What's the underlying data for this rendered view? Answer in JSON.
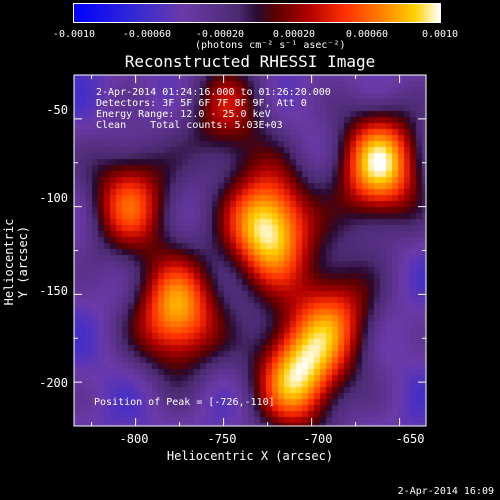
{
  "colorbar": {
    "ticks": [
      "-0.0010",
      "-0.00060",
      "-0.00020",
      "0.00020",
      "0.00060",
      "0.0010"
    ],
    "unit": "(photons cm⁻² s⁻¹ asec⁻²)"
  },
  "chart_data": {
    "type": "heatmap",
    "title": "Reconstructed RHESSI Image",
    "xlabel": "Heliocentric X (arcsec)",
    "ylabel": "Heliocentric Y (arcsec)",
    "xlim": [
      -835,
      -635
    ],
    "ylim": [
      -225,
      -25
    ],
    "xticks": [
      "-800",
      "-750",
      "-700",
      "-650"
    ],
    "yticks": [
      "-50",
      "-100",
      "-150",
      "-200"
    ],
    "colorscale_range": [
      -0.001,
      0.001
    ],
    "sources": [
      {
        "x": -726,
        "y": -110,
        "value": 0.00105
      },
      {
        "x": -663,
        "y": -75,
        "value": 0.0009
      },
      {
        "x": -778,
        "y": -160,
        "value": 0.0008
      },
      {
        "x": -710,
        "y": -195,
        "value": 0.00085
      },
      {
        "x": -688,
        "y": -160,
        "value": 0.0004
      },
      {
        "x": -805,
        "y": -95,
        "value": 0.0005
      },
      {
        "x": -750,
        "y": -45,
        "value": 0.00025
      }
    ]
  },
  "info": {
    "time": "2-Apr-2014 01:24:16.000 to 01:26:20.000",
    "detectors": "Detectors: 3F 5F 6F 7F 8F 9F, Att 0",
    "energy": "Energy Range: 12.0 - 25.0 keV",
    "clean": "Clean    Total counts: 5.03E+03"
  },
  "peak": "Position of Peak = [-726,-110]",
  "footer": "2-Apr-2014 16:09"
}
